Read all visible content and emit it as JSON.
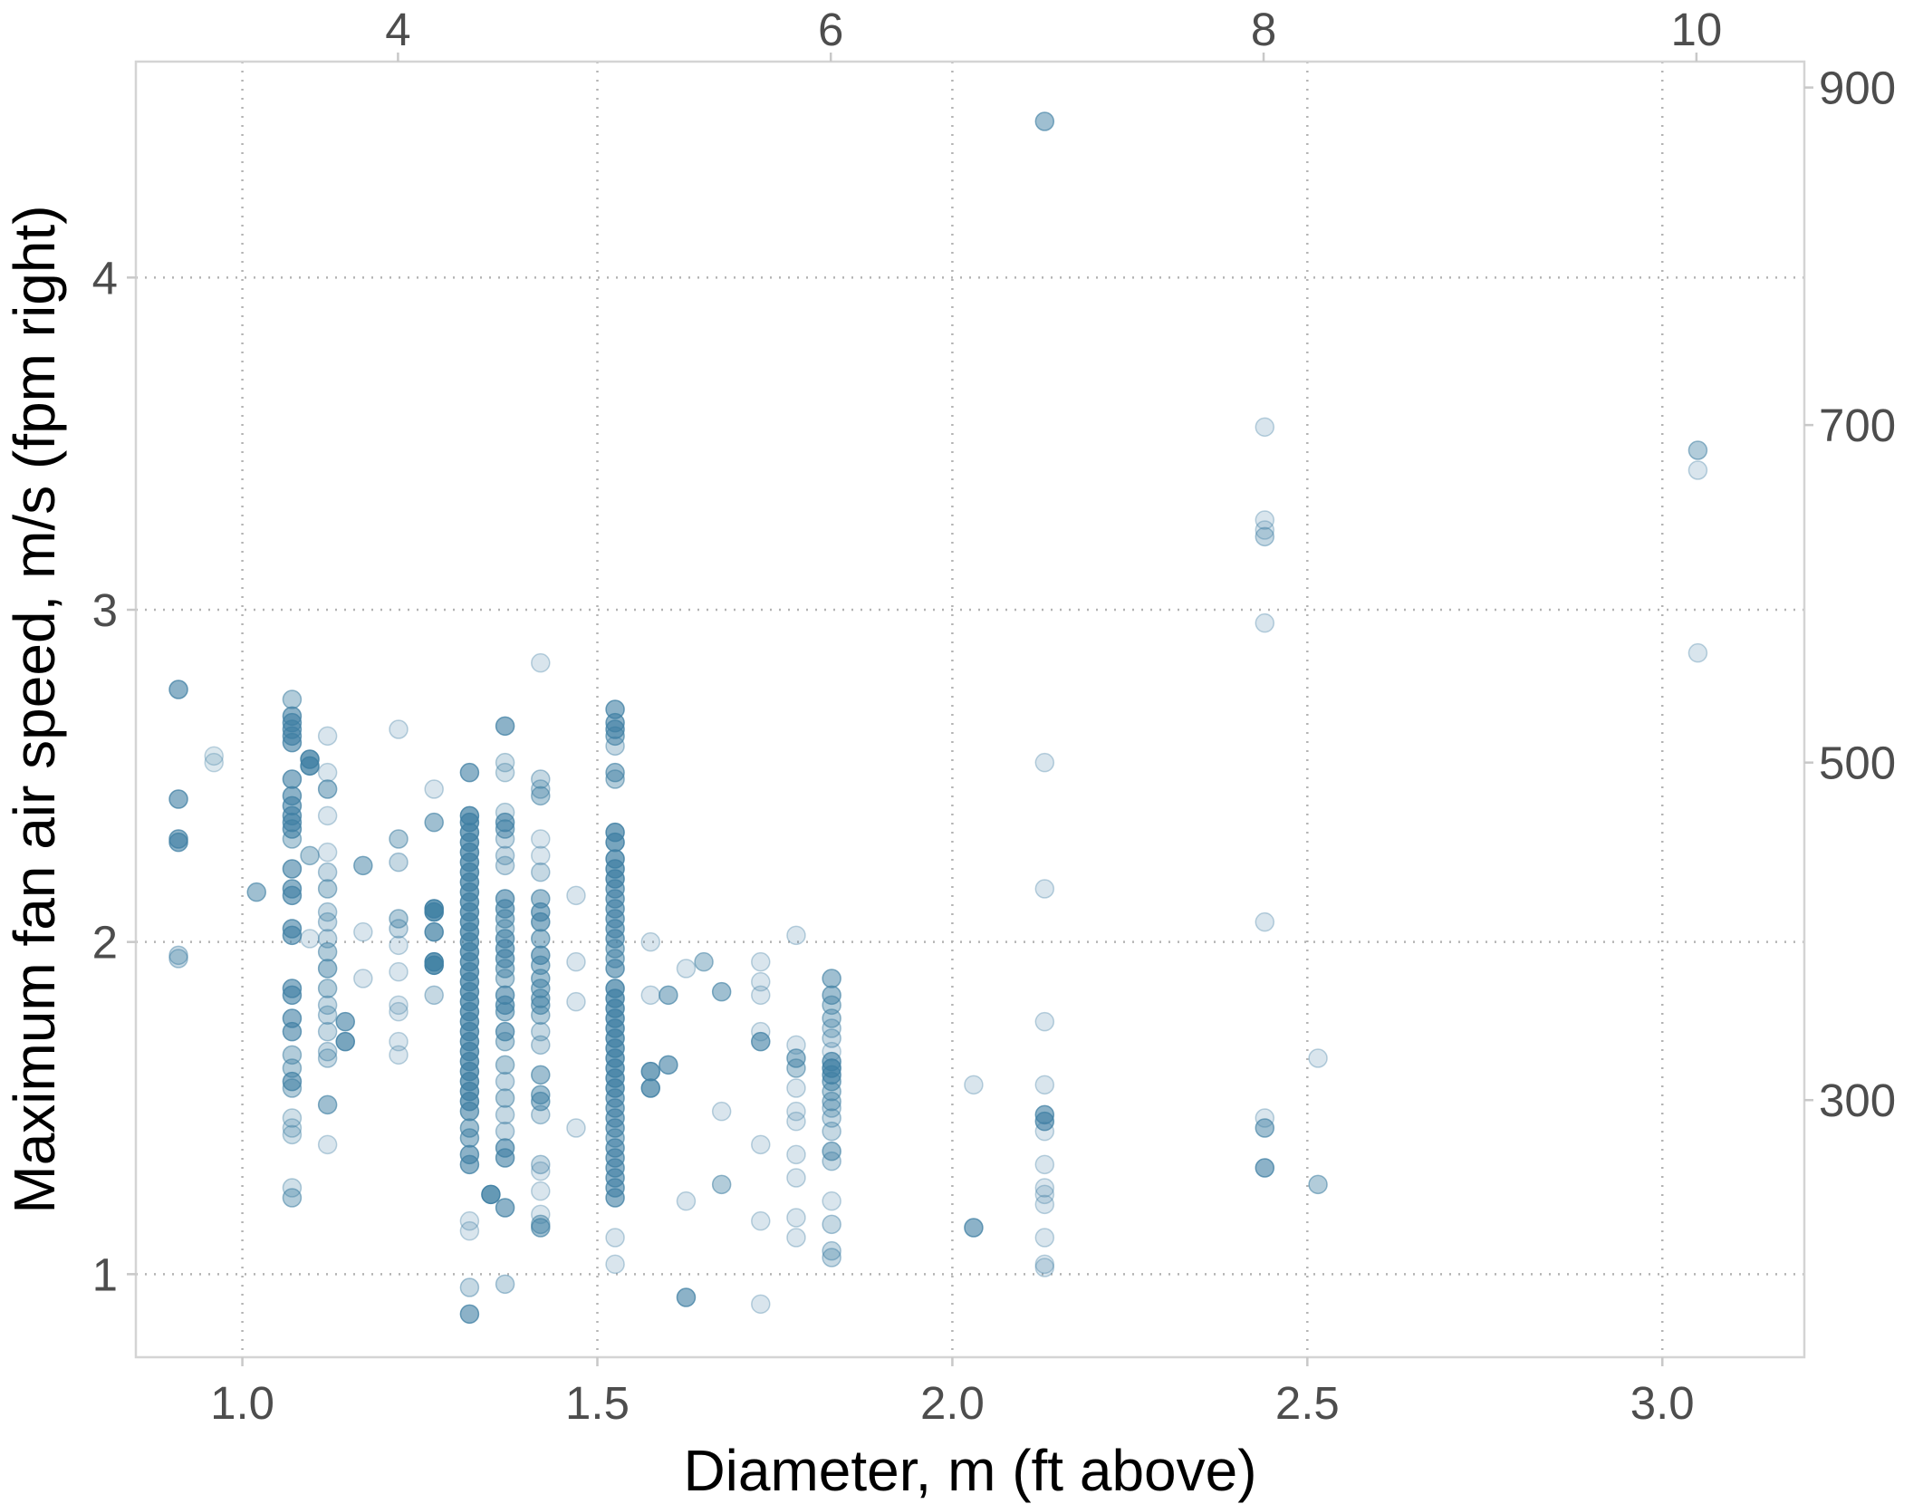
{
  "chart_data": {
    "type": "scatter",
    "xlabel": "Diameter, m (ft above)",
    "ylabel": "Maximum fan air speed, m/s (fpm right)",
    "x_axis_bottom": {
      "ticks": [
        1.0,
        1.5,
        2.0,
        2.5,
        3.0
      ],
      "tick_labels": [
        "1.0",
        "1.5",
        "2.0",
        "2.5",
        "3.0"
      ],
      "range": [
        0.85,
        3.2
      ]
    },
    "x_axis_top": {
      "unit": "ft",
      "ticks": [
        4,
        6,
        8,
        10
      ],
      "tick_labels": [
        "4",
        "6",
        "8",
        "10"
      ]
    },
    "y_axis_left": {
      "ticks": [
        1,
        2,
        3,
        4
      ],
      "tick_labels": [
        "1",
        "2",
        "3",
        "4"
      ],
      "range": [
        0.75,
        4.65
      ]
    },
    "y_axis_right": {
      "unit": "fpm",
      "ticks": [
        300,
        500,
        700,
        900
      ],
      "tick_labels": [
        "300",
        "500",
        "700",
        "900"
      ]
    },
    "grid": "dotted",
    "point_color": "#3f7fa3",
    "columns": [
      {
        "x": 0.91,
        "y": [
          2.76,
          2.43,
          2.31,
          2.3,
          1.96,
          1.95
        ],
        "o": [
          0.6,
          0.6,
          0.6,
          0.6,
          0.3,
          0.3
        ]
      },
      {
        "x": 0.96,
        "y": [
          2.56,
          2.54
        ],
        "o": [
          0.18,
          0.18
        ]
      },
      {
        "x": 1.02,
        "y": [
          2.15
        ],
        "o": [
          0.5
        ]
      },
      {
        "x": 1.07,
        "y": [
          2.73,
          2.68,
          2.66,
          2.64,
          2.62,
          2.6,
          2.49,
          2.44,
          2.41,
          2.38,
          2.36,
          2.34,
          2.31,
          2.22,
          2.16,
          2.14,
          2.04,
          2.02,
          1.86,
          1.84,
          1.77,
          1.73,
          1.66,
          1.62,
          1.58,
          1.56,
          1.47,
          1.44,
          1.42,
          1.26,
          1.23
        ],
        "o": [
          0.4,
          0.6,
          0.6,
          0.6,
          0.6,
          0.6,
          0.6,
          0.6,
          0.6,
          0.6,
          0.6,
          0.6,
          0.4,
          0.6,
          0.6,
          0.6,
          0.6,
          0.6,
          0.6,
          0.6,
          0.6,
          0.6,
          0.4,
          0.4,
          0.6,
          0.4,
          0.25,
          0.25,
          0.25,
          0.25,
          0.4
        ]
      },
      {
        "x": 1.095,
        "y": [
          2.55,
          2.53,
          2.26,
          2.01
        ],
        "o": [
          0.75,
          0.75,
          0.4,
          0.2
        ]
      },
      {
        "x": 1.12,
        "y": [
          2.62,
          2.51,
          2.46,
          2.38,
          2.27,
          2.21,
          2.16,
          2.09,
          2.06,
          2.01,
          1.97,
          1.92,
          1.86,
          1.81,
          1.78,
          1.73,
          1.67,
          1.65,
          1.51,
          1.39
        ],
        "o": [
          0.2,
          0.2,
          0.5,
          0.2,
          0.2,
          0.3,
          0.4,
          0.3,
          0.3,
          0.3,
          0.4,
          0.5,
          0.4,
          0.3,
          0.3,
          0.3,
          0.3,
          0.3,
          0.5,
          0.2
        ]
      },
      {
        "x": 1.145,
        "y": [
          1.76,
          1.7
        ],
        "o": [
          0.6,
          0.7
        ]
      },
      {
        "x": 1.17,
        "y": [
          2.23,
          2.03,
          1.89
        ],
        "o": [
          0.5,
          0.2,
          0.2
        ]
      },
      {
        "x": 1.22,
        "y": [
          2.64,
          2.31,
          2.24,
          2.07,
          2.04,
          1.99,
          1.91,
          1.81,
          1.79,
          1.7,
          1.66
        ],
        "o": [
          0.2,
          0.4,
          0.3,
          0.4,
          0.3,
          0.2,
          0.2,
          0.2,
          0.2,
          0.2,
          0.2
        ]
      },
      {
        "x": 1.27,
        "y": [
          2.46,
          2.36,
          2.1,
          2.09,
          2.03,
          1.94,
          1.93,
          1.84
        ],
        "o": [
          0.2,
          0.5,
          0.8,
          0.8,
          0.7,
          0.8,
          0.8,
          0.3
        ]
      },
      {
        "x": 1.32,
        "y": [
          2.51,
          2.38,
          2.36,
          2.33,
          2.3,
          2.27,
          2.24,
          2.21,
          2.18,
          2.15,
          2.12,
          2.09,
          2.06,
          2.03,
          2.0,
          1.97,
          1.94,
          1.91,
          1.88,
          1.85,
          1.82,
          1.79,
          1.76,
          1.73,
          1.7,
          1.67,
          1.64,
          1.61,
          1.58,
          1.55,
          1.52,
          1.49,
          1.44,
          1.41,
          1.36,
          1.33,
          1.16,
          1.13,
          0.96,
          0.88
        ],
        "o": [
          0.6,
          0.7,
          0.7,
          0.7,
          0.7,
          0.7,
          0.7,
          0.7,
          0.7,
          0.7,
          0.7,
          0.7,
          0.7,
          0.7,
          0.7,
          0.7,
          0.7,
          0.7,
          0.7,
          0.7,
          0.7,
          0.7,
          0.7,
          0.7,
          0.7,
          0.7,
          0.7,
          0.7,
          0.7,
          0.7,
          0.7,
          0.6,
          0.5,
          0.5,
          0.6,
          0.6,
          0.2,
          0.2,
          0.3,
          0.6
        ]
      },
      {
        "x": 1.35,
        "y": [
          1.24
        ],
        "o": [
          0.8
        ]
      },
      {
        "x": 1.37,
        "y": [
          2.65,
          2.54,
          2.51,
          2.39,
          2.36,
          2.34,
          2.31,
          2.26,
          2.23,
          2.13,
          2.1,
          2.07,
          2.04,
          2.01,
          1.98,
          1.95,
          1.92,
          1.89,
          1.84,
          1.81,
          1.79,
          1.73,
          1.7,
          1.63,
          1.58,
          1.53,
          1.48,
          1.43,
          1.38,
          1.35,
          1.2,
          0.97
        ],
        "o": [
          0.6,
          0.25,
          0.25,
          0.25,
          0.6,
          0.5,
          0.3,
          0.3,
          0.3,
          0.6,
          0.6,
          0.5,
          0.4,
          0.6,
          0.6,
          0.6,
          0.5,
          0.4,
          0.6,
          0.6,
          0.5,
          0.6,
          0.4,
          0.4,
          0.3,
          0.4,
          0.3,
          0.3,
          0.6,
          0.6,
          0.6,
          0.3
        ]
      },
      {
        "x": 1.42,
        "y": [
          2.84,
          2.49,
          2.46,
          2.44,
          2.31,
          2.26,
          2.21,
          2.13,
          2.09,
          2.06,
          2.01,
          1.96,
          1.93,
          1.89,
          1.86,
          1.83,
          1.81,
          1.78,
          1.73,
          1.69,
          1.6,
          1.54,
          1.52,
          1.48,
          1.33,
          1.31,
          1.25,
          1.18,
          1.15,
          1.14
        ],
        "o": [
          0.2,
          0.3,
          0.3,
          0.4,
          0.2,
          0.2,
          0.3,
          0.5,
          0.6,
          0.6,
          0.5,
          0.6,
          0.5,
          0.5,
          0.5,
          0.5,
          0.5,
          0.4,
          0.3,
          0.3,
          0.5,
          0.5,
          0.5,
          0.3,
          0.3,
          0.2,
          0.2,
          0.2,
          0.4,
          0.5
        ]
      },
      {
        "x": 1.47,
        "y": [
          2.14,
          1.94,
          1.82,
          1.44
        ],
        "o": [
          0.2,
          0.2,
          0.2,
          0.2
        ]
      },
      {
        "x": 1.525,
        "y": [
          2.7,
          2.66,
          2.64,
          2.62,
          2.59,
          2.51,
          2.49,
          2.33,
          2.3,
          2.25,
          2.22,
          2.19,
          2.16,
          2.13,
          2.1,
          2.07,
          2.04,
          2.01,
          1.98,
          1.95,
          1.92,
          1.86,
          1.83,
          1.8,
          1.77,
          1.74,
          1.71,
          1.68,
          1.65,
          1.62,
          1.59,
          1.56,
          1.53,
          1.5,
          1.47,
          1.44,
          1.41,
          1.38,
          1.35,
          1.32,
          1.29,
          1.26,
          1.23,
          1.11,
          1.03
        ],
        "o": [
          0.6,
          0.6,
          0.6,
          0.5,
          0.3,
          0.5,
          0.4,
          0.7,
          0.7,
          0.7,
          0.7,
          0.7,
          0.6,
          0.6,
          0.6,
          0.6,
          0.6,
          0.6,
          0.5,
          0.5,
          0.6,
          0.7,
          0.7,
          0.7,
          0.7,
          0.7,
          0.7,
          0.7,
          0.7,
          0.7,
          0.7,
          0.7,
          0.6,
          0.6,
          0.6,
          0.6,
          0.5,
          0.6,
          0.6,
          0.6,
          0.6,
          0.6,
          0.6,
          0.2,
          0.2
        ]
      },
      {
        "x": 1.575,
        "y": [
          2.0,
          1.84,
          1.61,
          1.56
        ],
        "o": [
          0.2,
          0.2,
          0.7,
          0.7
        ]
      },
      {
        "x": 1.6,
        "y": [
          1.84,
          1.63
        ],
        "o": [
          0.5,
          0.6
        ]
      },
      {
        "x": 1.625,
        "y": [
          1.92,
          1.22,
          0.93
        ],
        "o": [
          0.2,
          0.2,
          0.6
        ]
      },
      {
        "x": 1.65,
        "y": [
          1.94
        ],
        "o": [
          0.4
        ]
      },
      {
        "x": 1.675,
        "y": [
          1.85,
          1.49,
          1.27
        ],
        "o": [
          0.5,
          0.2,
          0.4
        ]
      },
      {
        "x": 1.73,
        "y": [
          1.94,
          1.88,
          1.84,
          1.73,
          1.7,
          1.39,
          1.16,
          0.91
        ],
        "o": [
          0.2,
          0.2,
          0.2,
          0.2,
          0.6,
          0.2,
          0.2,
          0.2
        ]
      },
      {
        "x": 1.78,
        "y": [
          2.02,
          1.69,
          1.65,
          1.62,
          1.56,
          1.49,
          1.46,
          1.36,
          1.29,
          1.17,
          1.11
        ],
        "o": [
          0.2,
          0.2,
          0.5,
          0.4,
          0.2,
          0.2,
          0.2,
          0.2,
          0.2,
          0.2,
          0.2
        ]
      },
      {
        "x": 1.83,
        "y": [
          1.89,
          1.84,
          1.81,
          1.77,
          1.74,
          1.71,
          1.67,
          1.64,
          1.62,
          1.6,
          1.58,
          1.55,
          1.52,
          1.5,
          1.47,
          1.43,
          1.37,
          1.34,
          1.22,
          1.15,
          1.07,
          1.05
        ],
        "o": [
          0.5,
          0.5,
          0.4,
          0.4,
          0.3,
          0.3,
          0.2,
          0.6,
          0.7,
          0.6,
          0.5,
          0.4,
          0.4,
          0.3,
          0.3,
          0.3,
          0.5,
          0.3,
          0.2,
          0.3,
          0.3,
          0.3
        ]
      },
      {
        "x": 2.03,
        "y": [
          1.57,
          1.14
        ],
        "o": [
          0.2,
          0.6
        ]
      },
      {
        "x": 2.13,
        "y": [
          4.47,
          2.54,
          2.16,
          1.76,
          1.57,
          1.48,
          1.46,
          1.43,
          1.33,
          1.26,
          1.24,
          1.21,
          1.11,
          1.03,
          1.02
        ],
        "o": [
          0.5,
          0.2,
          0.2,
          0.2,
          0.2,
          0.6,
          0.6,
          0.2,
          0.2,
          0.2,
          0.2,
          0.2,
          0.2,
          0.2,
          0.2
        ]
      },
      {
        "x": 2.44,
        "y": [
          3.55,
          3.27,
          3.24,
          3.22,
          2.96,
          2.06,
          1.47,
          1.44,
          1.32
        ],
        "o": [
          0.2,
          0.2,
          0.2,
          0.3,
          0.2,
          0.2,
          0.2,
          0.5,
          0.6
        ]
      },
      {
        "x": 2.515,
        "y": [
          1.65,
          1.27
        ],
        "o": [
          0.2,
          0.4
        ]
      },
      {
        "x": 3.05,
        "y": [
          3.48,
          3.42,
          2.87
        ],
        "o": [
          0.4,
          0.2,
          0.2
        ]
      }
    ]
  }
}
